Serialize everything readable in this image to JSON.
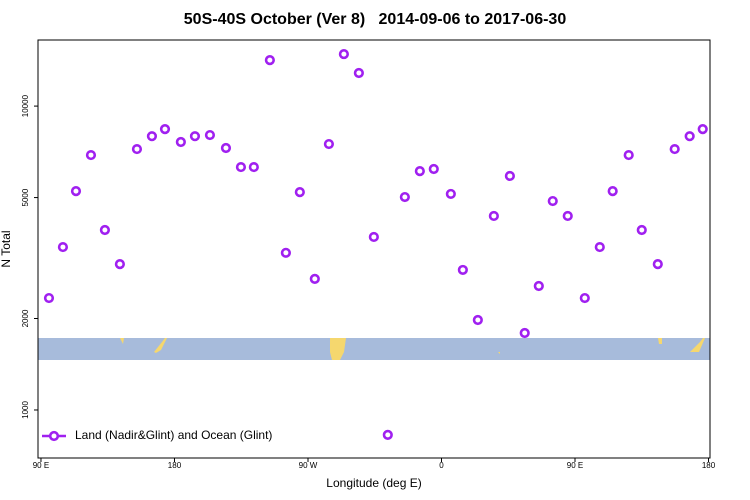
{
  "chart_data": {
    "type": "scatter",
    "title": "50S-40S October (Ver 8)   2014-09-06 to 2017-06-30",
    "x_label": "Longitude (deg E)",
    "y_label": "N Total",
    "xlim": [
      88,
      541
    ],
    "ylim": [
      695,
      16500
    ],
    "ylog": true,
    "xticks": [
      {
        "value": 90,
        "label": "90 E"
      },
      180,
      {
        "value": 270,
        "label": "90 W"
      },
      {
        "value": 360,
        "label": "0"
      },
      {
        "value": 450,
        "label": "90 E"
      },
      {
        "value": 540,
        "label": "180"
      }
    ],
    "yticks": [
      1000,
      2000,
      5000,
      10000
    ],
    "legend": "bottom-left",
    "series": [
      {
        "name": "Land (Nadir&Glint) and Ocean (Glint)",
        "color": "#a020f0",
        "x": [
          95.4,
          104.8,
          113.6,
          123.7,
          133.1,
          143.2,
          154.7,
          164.8,
          173.6,
          184.3,
          193.8,
          203.9,
          214.7,
          224.8,
          233.5,
          244.3,
          255.1,
          264.5,
          274.6,
          284.1,
          294.2,
          304.3,
          314.4,
          323.8,
          335.3,
          345.4,
          354.8,
          366.3,
          374.4,
          384.5,
          395.3,
          406.1,
          416.1,
          425.6,
          435.0,
          445.1,
          456.6,
          466.7,
          475.4,
          486.2,
          495.0,
          505.8,
          517.2,
          527.3,
          536.1
        ],
        "values": [
          2335,
          3436,
          5250,
          6900,
          3910,
          3020,
          7220,
          7960,
          8400,
          7620,
          7960,
          8030,
          7280,
          6300,
          6300,
          14170,
          3290,
          5210,
          2700,
          7500,
          14830,
          12850,
          3710,
          828,
          5020,
          6110,
          6210,
          5140,
          2890,
          1977,
          4350,
          5890,
          1792,
          2558,
          4870,
          4350,
          2335,
          3436,
          5250,
          6900,
          3910,
          3020,
          7220,
          7960,
          8400
        ]
      }
    ]
  }
}
